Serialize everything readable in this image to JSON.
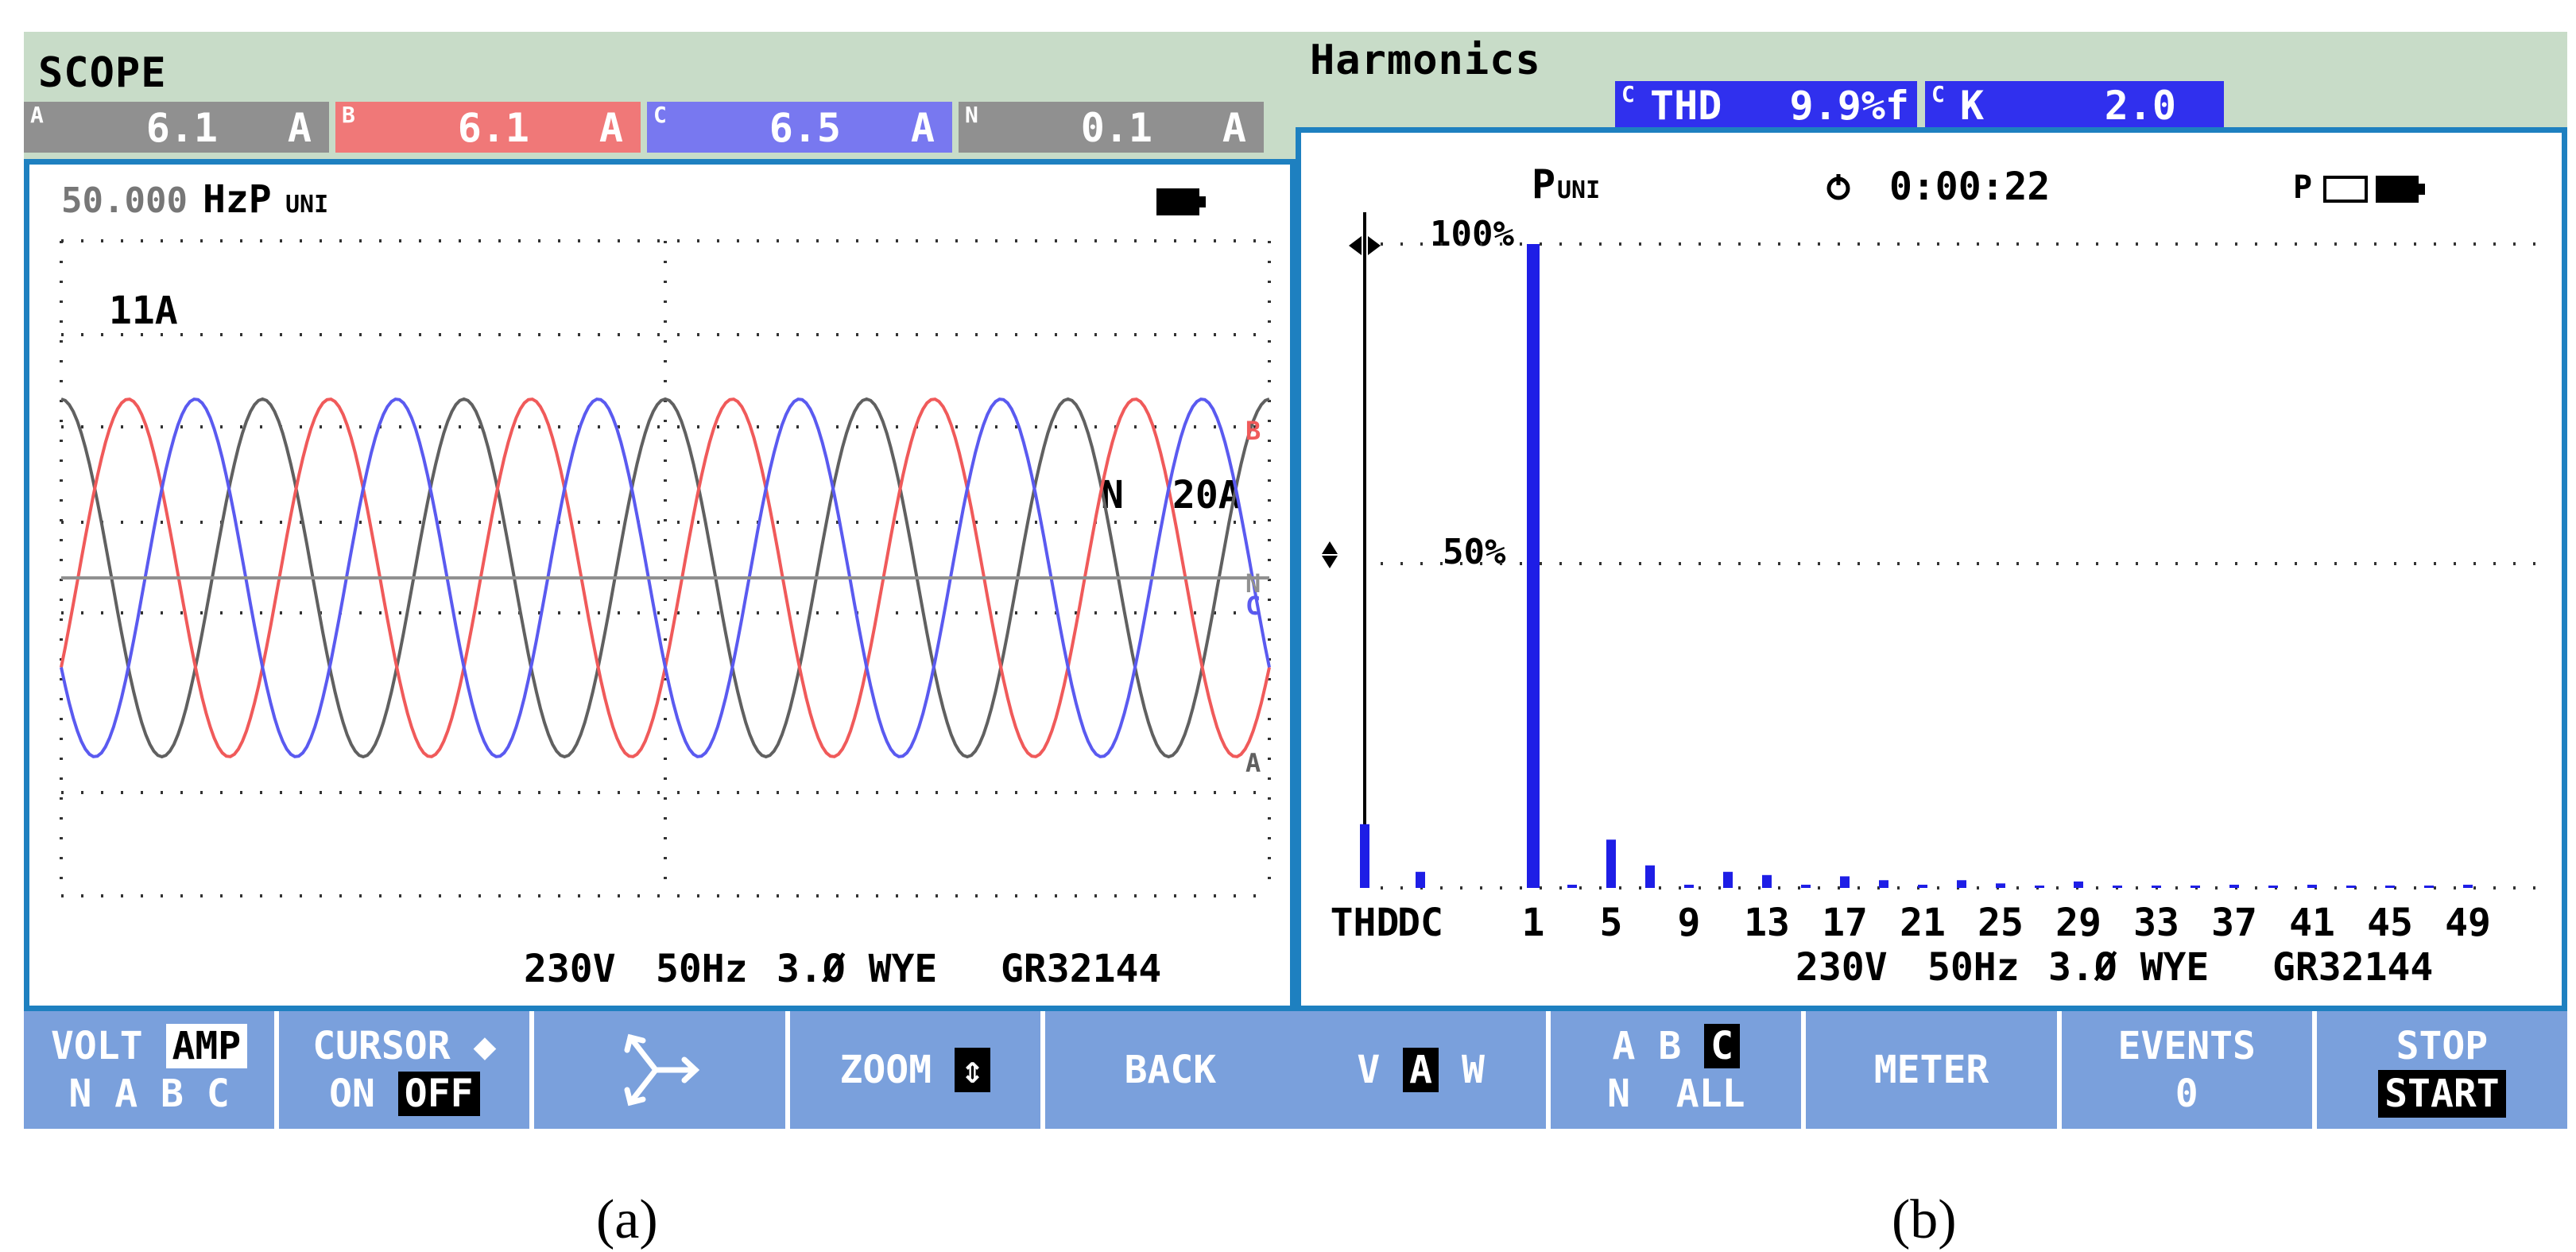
{
  "panel_a": {
    "title": "SCOPE",
    "readouts": [
      {
        "label": "A",
        "value": "6.1",
        "unit": "A",
        "color": "#909090"
      },
      {
        "label": "B",
        "value": "6.1",
        "unit": "A",
        "color": "#f07878"
      },
      {
        "label": "C",
        "value": "6.5",
        "unit": "A",
        "color": "#7878f0"
      },
      {
        "label": "N",
        "value": "0.1",
        "unit": "A",
        "color": "#909090"
      }
    ],
    "freq_readout": "50.000",
    "freq_unit": "HzP",
    "puni": "UNI",
    "scale_label": "11A",
    "neutral_label": "N",
    "neutral_scale": "20A",
    "trace_labels": {
      "b": "B",
      "n": "N",
      "c": "C",
      "a": "A"
    },
    "status": {
      "voltage": "230V",
      "freq": "50Hz",
      "config": "3.Ø WYE",
      "id": "GR32144"
    },
    "fkeys": {
      "volt": "VOLT",
      "amp": "AMP",
      "phases": "N A B C",
      "cursor": "CURSOR ◆",
      "on": "ON",
      "off": "OFF",
      "zoom": "ZOOM",
      "back": "BACK"
    },
    "caption": "(a)"
  },
  "panel_b": {
    "title": "Harmonics",
    "thd_label": "THD",
    "thd_value": "9.9%f",
    "k_label": "K",
    "k_value": "2.0",
    "c_tag": "C",
    "header_p": "P",
    "header_uni": "UNI",
    "timer": "0:00:22",
    "pct_100": "100%",
    "pct_50": "50%",
    "status": {
      "voltage": "230V",
      "freq": "50Hz",
      "config": "3.Ø WYE",
      "id": "GR32144"
    },
    "fkeys": {
      "v": "V",
      "a": "A",
      "w": "W",
      "ab": "A  B",
      "c": "C",
      "n": "N",
      "all": "ALL",
      "meter": "METER",
      "events": "EVENTS",
      "events_count": "0",
      "stop": "STOP",
      "start": "START"
    },
    "caption": "(b)"
  },
  "chart_data": [
    {
      "type": "line",
      "title": "",
      "xlabel": "",
      "ylabel": "",
      "series": [
        {
          "name": "A",
          "color": "#606060",
          "amplitude": 1.0,
          "phase_deg": 0,
          "cycles": 6
        },
        {
          "name": "B",
          "color": "#f05a5a",
          "amplitude": 1.0,
          "phase_deg": -120,
          "cycles": 6
        },
        {
          "name": "C",
          "color": "#5a5af0",
          "amplitude": 1.0,
          "phase_deg": 120,
          "cycles": 6
        },
        {
          "name": "N",
          "color": "#909090",
          "amplitude": 0.0,
          "phase_deg": 0,
          "cycles": 6
        }
      ]
    },
    {
      "type": "bar",
      "title": "",
      "categories": [
        "THD",
        "DC",
        "1",
        "3",
        "5",
        "7",
        "9",
        "11",
        "13",
        "15",
        "17",
        "19",
        "21",
        "23",
        "25",
        "27",
        "29",
        "31",
        "33",
        "35",
        "37",
        "39",
        "41",
        "43",
        "45",
        "47",
        "49"
      ],
      "values": [
        9.9,
        2.5,
        100,
        0.5,
        7.5,
        3.5,
        0.5,
        2.5,
        2,
        0.5,
        1.8,
        1.2,
        0.5,
        1.2,
        0.7,
        0.3,
        1,
        0.3,
        0.3,
        0.2,
        0.5,
        0.2,
        0.5,
        0.2,
        0.3,
        0.2,
        0.5
      ],
      "ylim": [
        0,
        100
      ],
      "tick_labels": [
        "THD",
        "DC",
        "1",
        "5",
        "9",
        "13",
        "17",
        "21",
        "25",
        "29",
        "33",
        "37",
        "41",
        "45",
        "49"
      ],
      "bar_color": "#1e1ee6"
    }
  ]
}
